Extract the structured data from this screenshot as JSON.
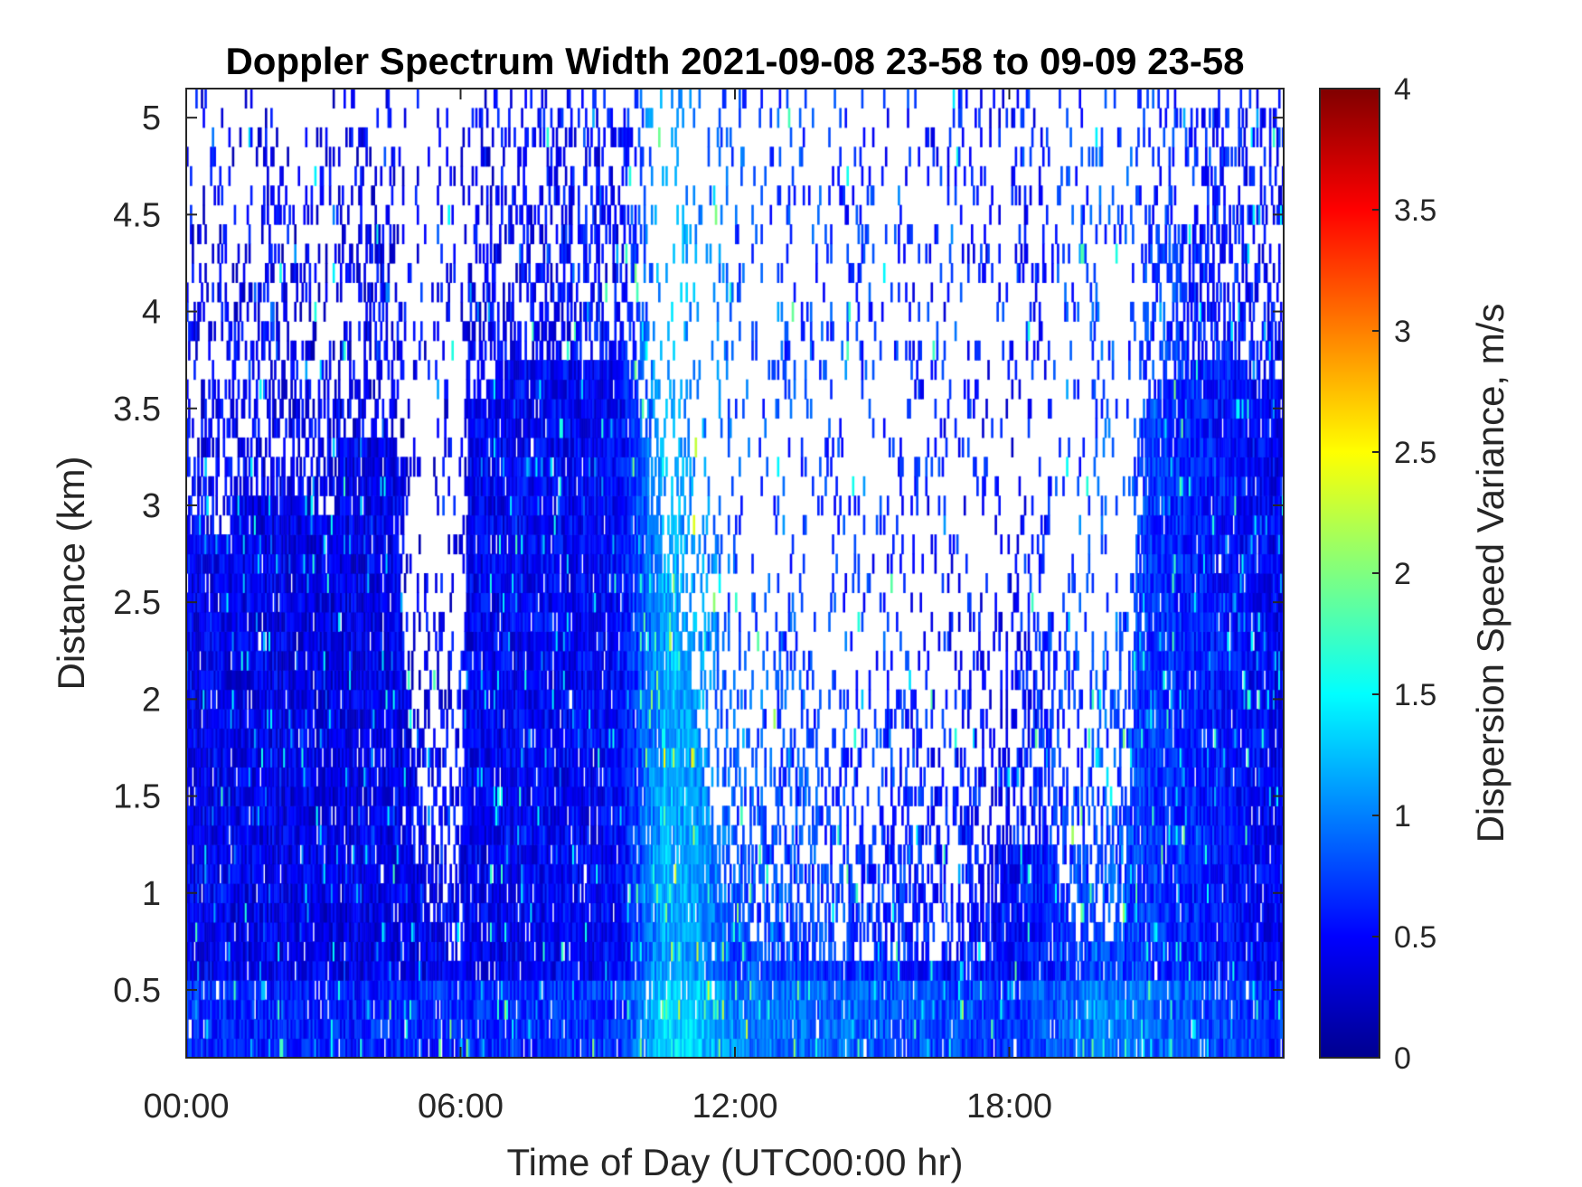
{
  "chart_data": {
    "type": "heatmap",
    "title": "Doppler Spectrum Width 2021-09-08 23-58 to 09-09 23-58",
    "xlabel": "Time of Day (UTC00:00 hr)",
    "ylabel": "Distance (km)",
    "colorbar_label": "Dispersion Speed Variance, m/s",
    "colormap": "jet",
    "xlim": [
      0,
      24
    ],
    "ylim": [
      0.15,
      5.15
    ],
    "clim": [
      0,
      4
    ],
    "x_ticks": [
      {
        "value": 0,
        "label": "00:00"
      },
      {
        "value": 6,
        "label": "06:00"
      },
      {
        "value": 12,
        "label": "12:00"
      },
      {
        "value": 18,
        "label": "18:00"
      }
    ],
    "y_ticks": [
      {
        "value": 0.5,
        "label": "0.5"
      },
      {
        "value": 1,
        "label": "1"
      },
      {
        "value": 1.5,
        "label": "1.5"
      },
      {
        "value": 2,
        "label": "2"
      },
      {
        "value": 2.5,
        "label": "2.5"
      },
      {
        "value": 3,
        "label": "3"
      },
      {
        "value": 3.5,
        "label": "3.5"
      },
      {
        "value": 4,
        "label": "4"
      },
      {
        "value": 4.5,
        "label": "4.5"
      },
      {
        "value": 5,
        "label": "5"
      }
    ],
    "colorbar_ticks": [
      {
        "value": 0,
        "label": "0"
      },
      {
        "value": 0.5,
        "label": "0.5"
      },
      {
        "value": 1,
        "label": "1"
      },
      {
        "value": 1.5,
        "label": "1.5"
      },
      {
        "value": 2,
        "label": "2"
      },
      {
        "value": 2.5,
        "label": "2.5"
      },
      {
        "value": 3,
        "label": "3"
      },
      {
        "value": 3.5,
        "label": "3.5"
      },
      {
        "value": 4,
        "label": "4"
      }
    ],
    "missing_data_color": "#ffffff",
    "valid_data_top_km": [
      {
        "time_hr": 0.0,
        "top_km": 2.95
      },
      {
        "time_hr": 0.8,
        "top_km": 2.85
      },
      {
        "time_hr": 1.5,
        "top_km": 3.05
      },
      {
        "time_hr": 2.5,
        "top_km": 3.05
      },
      {
        "time_hr": 3.2,
        "top_km": 2.9
      },
      {
        "time_hr": 3.4,
        "top_km": 3.3
      },
      {
        "time_hr": 4.5,
        "top_km": 3.4
      },
      {
        "time_hr": 5.0,
        "top_km": 1.2
      },
      {
        "time_hr": 5.5,
        "top_km": 0.8
      },
      {
        "time_hr": 6.0,
        "top_km": 0.6
      },
      {
        "time_hr": 6.2,
        "top_km": 3.5
      },
      {
        "time_hr": 7.0,
        "top_km": 3.7
      },
      {
        "time_hr": 9.0,
        "top_km": 3.7
      },
      {
        "time_hr": 9.8,
        "top_km": 3.7
      },
      {
        "time_hr": 10.3,
        "top_km": 2.8
      },
      {
        "time_hr": 11.0,
        "top_km": 2.1
      },
      {
        "time_hr": 11.8,
        "top_km": 0.9
      },
      {
        "time_hr": 12.5,
        "top_km": 0.7
      },
      {
        "time_hr": 14.0,
        "top_km": 0.6
      },
      {
        "time_hr": 16.0,
        "top_km": 0.6
      },
      {
        "time_hr": 17.5,
        "top_km": 0.7
      },
      {
        "time_hr": 18.0,
        "top_km": 1.2
      },
      {
        "time_hr": 18.8,
        "top_km": 1.3
      },
      {
        "time_hr": 19.5,
        "top_km": 0.7
      },
      {
        "time_hr": 20.5,
        "top_km": 0.8
      },
      {
        "time_hr": 21.0,
        "top_km": 3.5
      },
      {
        "time_hr": 22.5,
        "top_km": 3.8
      },
      {
        "time_hr": 24.0,
        "top_km": 3.6
      }
    ],
    "mean_width_profile": [
      {
        "time_hr": 0.0,
        "value": 0.45
      },
      {
        "time_hr": 3.0,
        "value": 0.4
      },
      {
        "time_hr": 6.0,
        "value": 0.45
      },
      {
        "time_hr": 9.5,
        "value": 0.5
      },
      {
        "time_hr": 10.5,
        "value": 1.2
      },
      {
        "time_hr": 11.2,
        "value": 1.1
      },
      {
        "time_hr": 12.0,
        "value": 0.8
      },
      {
        "time_hr": 14.0,
        "value": 0.7
      },
      {
        "time_hr": 18.0,
        "value": 0.5
      },
      {
        "time_hr": 20.0,
        "value": 0.8
      },
      {
        "time_hr": 24.0,
        "value": 0.45
      }
    ]
  }
}
